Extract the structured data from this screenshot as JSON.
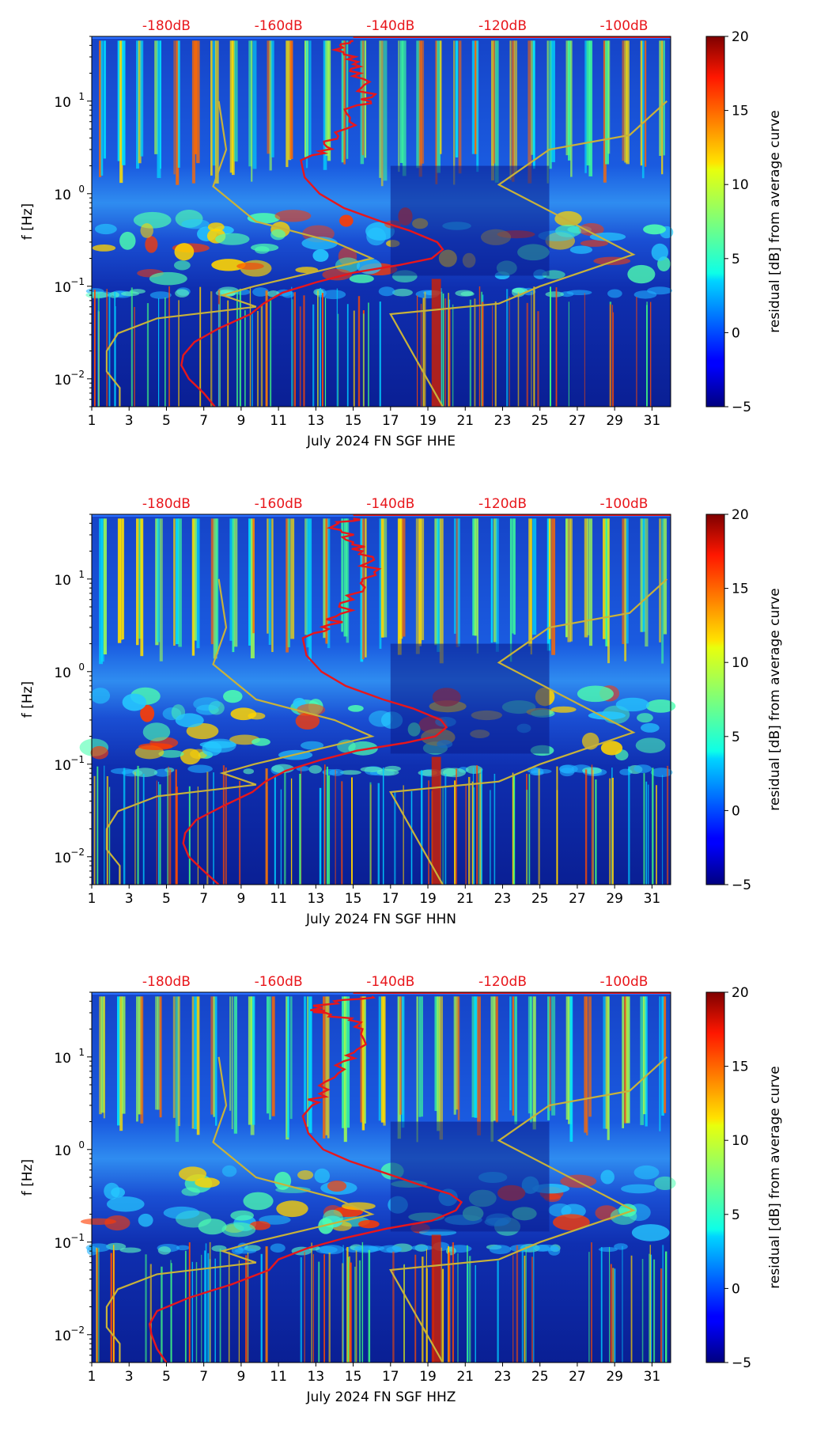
{
  "chart_data": [
    {
      "type": "heatmap",
      "channel": "HHE",
      "xlabel": "July 2024 FN SGF  HHE",
      "ylabel": "f [Hz]",
      "xlim": [
        1,
        32
      ],
      "ylim": [
        0.005,
        50
      ],
      "yscale": "log",
      "x_ticks": [
        "1",
        "3",
        "5",
        "7",
        "9",
        "11",
        "13",
        "15",
        "17",
        "19",
        "21",
        "23",
        "25",
        "27",
        "29",
        "31"
      ],
      "y_ticks": [
        {
          "value": 0.01,
          "base": "10",
          "exp": "−2"
        },
        {
          "value": 0.1,
          "base": "10",
          "exp": "−1"
        },
        {
          "value": 1,
          "base": "10",
          "exp": "0"
        },
        {
          "value": 10,
          "base": "10",
          "exp": "1"
        }
      ],
      "top_axis_labels": [
        "-180dB",
        "-160dB",
        "-140dB",
        "-120dB",
        "-100dB"
      ],
      "colorbar": {
        "label": "residual [dB] from average curve",
        "range": [
          -5,
          20
        ],
        "ticks": [
          "20",
          "15",
          "10",
          "5",
          "0",
          "−5"
        ]
      },
      "average_curve_red": [
        [
          7.6,
          0.005
        ],
        [
          7,
          0.007
        ],
        [
          6.2,
          0.01
        ],
        [
          5.8,
          0.014
        ],
        [
          5.9,
          0.018
        ],
        [
          6.5,
          0.025
        ],
        [
          7.8,
          0.035
        ],
        [
          9.5,
          0.05
        ],
        [
          10.2,
          0.065
        ],
        [
          11.2,
          0.085
        ],
        [
          13,
          0.11
        ],
        [
          15,
          0.14
        ],
        [
          17.5,
          0.17
        ],
        [
          19.2,
          0.2
        ],
        [
          19.8,
          0.25
        ],
        [
          19.5,
          0.3
        ],
        [
          18,
          0.4
        ],
        [
          16.5,
          0.5
        ],
        [
          14.5,
          0.7
        ],
        [
          13.2,
          1.0
        ],
        [
          12.4,
          1.5
        ],
        [
          12.2,
          2.3
        ],
        [
          12.8,
          2.6
        ],
        [
          13.6,
          3.2
        ],
        [
          14.2,
          4.2
        ],
        [
          14.8,
          6
        ],
        [
          15.2,
          9
        ],
        [
          16,
          11
        ],
        [
          15.6,
          15
        ],
        [
          15.4,
          20
        ],
        [
          15,
          25
        ],
        [
          14.5,
          32
        ],
        [
          14.3,
          40
        ],
        [
          15,
          45
        ]
      ],
      "reference_curve_gold": [
        [
          2.5,
          0.005
        ],
        [
          2.5,
          0.008
        ],
        [
          1.8,
          0.012
        ],
        [
          1.8,
          0.02
        ],
        [
          2.4,
          0.031
        ],
        [
          4.5,
          0.045
        ],
        [
          8.2,
          0.055
        ],
        [
          9.8,
          0.06
        ],
        [
          8,
          0.08
        ],
        [
          9.7,
          0.1
        ],
        [
          16,
          0.2
        ],
        [
          14,
          0.3
        ],
        [
          9.8,
          0.5
        ],
        [
          7.5,
          1.2
        ],
        [
          8.2,
          3
        ],
        [
          7.8,
          10
        ],
        [
          19.8,
          0.005
        ],
        [
          17,
          0.05
        ],
        [
          22.8,
          0.065
        ],
        [
          25,
          0.1
        ],
        [
          30,
          0.22
        ],
        [
          22.8,
          1.25
        ],
        [
          25.5,
          3
        ],
        [
          29.8,
          4.3
        ],
        [
          31.8,
          10
        ]
      ]
    },
    {
      "type": "heatmap",
      "channel": "HHN",
      "xlabel": "July 2024 FN SGF  HHN",
      "ylabel": "f [Hz]",
      "xlim": [
        1,
        32
      ],
      "ylim": [
        0.005,
        50
      ],
      "yscale": "log",
      "x_ticks": [
        "1",
        "3",
        "5",
        "7",
        "9",
        "11",
        "13",
        "15",
        "17",
        "19",
        "21",
        "23",
        "25",
        "27",
        "29",
        "31"
      ],
      "y_ticks": [
        {
          "value": 0.01,
          "base": "10",
          "exp": "−2"
        },
        {
          "value": 0.1,
          "base": "10",
          "exp": "−1"
        },
        {
          "value": 1,
          "base": "10",
          "exp": "0"
        },
        {
          "value": 10,
          "base": "10",
          "exp": "1"
        }
      ],
      "top_axis_labels": [
        "-180dB",
        "-160dB",
        "-140dB",
        "-120dB",
        "-100dB"
      ],
      "colorbar": {
        "label": "residual [dB] from average curve",
        "range": [
          -5,
          20
        ],
        "ticks": [
          "20",
          "15",
          "10",
          "5",
          "0",
          "−5"
        ]
      },
      "average_curve_red": [
        [
          7.8,
          0.005
        ],
        [
          7,
          0.007
        ],
        [
          6.2,
          0.01
        ],
        [
          5.9,
          0.014
        ],
        [
          6,
          0.018
        ],
        [
          6.6,
          0.025
        ],
        [
          8,
          0.035
        ],
        [
          9.6,
          0.05
        ],
        [
          10.3,
          0.065
        ],
        [
          11.4,
          0.085
        ],
        [
          13.2,
          0.11
        ],
        [
          15.2,
          0.14
        ],
        [
          17.8,
          0.17
        ],
        [
          19.4,
          0.2
        ],
        [
          20,
          0.25
        ],
        [
          19.7,
          0.3
        ],
        [
          18.2,
          0.4
        ],
        [
          16.6,
          0.5
        ],
        [
          14.6,
          0.7
        ],
        [
          13.3,
          1.0
        ],
        [
          12.5,
          1.5
        ],
        [
          12.3,
          2.3
        ],
        [
          12.9,
          2.6
        ],
        [
          13.7,
          3.2
        ],
        [
          14.3,
          4.2
        ],
        [
          15,
          6
        ],
        [
          15.4,
          9
        ],
        [
          16.2,
          11
        ],
        [
          15.8,
          15
        ],
        [
          15.5,
          20
        ],
        [
          15,
          25
        ],
        [
          14.4,
          32
        ],
        [
          14.2,
          40
        ],
        [
          15,
          45
        ]
      ],
      "reference_curve_gold": [
        [
          2.5,
          0.005
        ],
        [
          2.5,
          0.008
        ],
        [
          1.8,
          0.012
        ],
        [
          1.8,
          0.02
        ],
        [
          2.4,
          0.031
        ],
        [
          4.5,
          0.045
        ],
        [
          8.2,
          0.055
        ],
        [
          9.8,
          0.06
        ],
        [
          8,
          0.08
        ],
        [
          9.7,
          0.1
        ],
        [
          16,
          0.2
        ],
        [
          14,
          0.3
        ],
        [
          9.8,
          0.5
        ],
        [
          7.5,
          1.2
        ],
        [
          8.2,
          3
        ],
        [
          7.8,
          10
        ],
        [
          19.8,
          0.005
        ],
        [
          17,
          0.05
        ],
        [
          22.8,
          0.065
        ],
        [
          25,
          0.1
        ],
        [
          30,
          0.22
        ],
        [
          22.8,
          1.25
        ],
        [
          25.5,
          3
        ],
        [
          29.8,
          4.3
        ],
        [
          31.8,
          10
        ]
      ]
    },
    {
      "type": "heatmap",
      "channel": "HHZ",
      "xlabel": "July 2024 FN SGF  HHZ",
      "ylabel": "f [Hz]",
      "xlim": [
        1,
        32
      ],
      "ylim": [
        0.005,
        50
      ],
      "yscale": "log",
      "x_ticks": [
        "1",
        "3",
        "5",
        "7",
        "9",
        "11",
        "13",
        "15",
        "17",
        "19",
        "21",
        "23",
        "25",
        "27",
        "29",
        "31"
      ],
      "y_ticks": [
        {
          "value": 0.01,
          "base": "10",
          "exp": "−2"
        },
        {
          "value": 0.1,
          "base": "10",
          "exp": "−1"
        },
        {
          "value": 1,
          "base": "10",
          "exp": "0"
        },
        {
          "value": 10,
          "base": "10",
          "exp": "1"
        }
      ],
      "top_axis_labels": [
        "-180dB",
        "-160dB",
        "-140dB",
        "-120dB",
        "-100dB"
      ],
      "colorbar": {
        "label": "residual [dB] from average curve",
        "range": [
          -5,
          20
        ],
        "ticks": [
          "20",
          "15",
          "10",
          "5",
          "0",
          "−5"
        ]
      },
      "average_curve_red": [
        [
          5,
          0.005
        ],
        [
          4.5,
          0.007
        ],
        [
          4.2,
          0.01
        ],
        [
          4.1,
          0.013
        ],
        [
          4.5,
          0.018
        ],
        [
          6.2,
          0.025
        ],
        [
          8.5,
          0.035
        ],
        [
          10.5,
          0.05
        ],
        [
          11,
          0.065
        ],
        [
          12.5,
          0.085
        ],
        [
          14.5,
          0.11
        ],
        [
          16.8,
          0.14
        ],
        [
          19.2,
          0.17
        ],
        [
          20.5,
          0.22
        ],
        [
          20.8,
          0.27
        ],
        [
          20.2,
          0.33
        ],
        [
          18.5,
          0.42
        ],
        [
          16.8,
          0.55
        ],
        [
          14.8,
          0.75
        ],
        [
          13.4,
          1.0
        ],
        [
          12.6,
          1.5
        ],
        [
          12.3,
          2.3
        ],
        [
          12.8,
          3
        ],
        [
          13.2,
          4
        ],
        [
          14,
          6
        ],
        [
          14.5,
          9
        ],
        [
          15.2,
          12
        ],
        [
          15.5,
          20
        ],
        [
          14.8,
          25
        ],
        [
          13.5,
          30
        ],
        [
          12.7,
          32
        ],
        [
          14,
          40
        ],
        [
          16,
          45
        ]
      ],
      "reference_curve_gold": [
        [
          2.5,
          0.005
        ],
        [
          2.5,
          0.008
        ],
        [
          1.8,
          0.012
        ],
        [
          1.8,
          0.02
        ],
        [
          2.4,
          0.031
        ],
        [
          4.5,
          0.045
        ],
        [
          8.2,
          0.055
        ],
        [
          9.8,
          0.06
        ],
        [
          8,
          0.08
        ],
        [
          9.7,
          0.1
        ],
        [
          16,
          0.2
        ],
        [
          14,
          0.3
        ],
        [
          9.8,
          0.5
        ],
        [
          7.5,
          1.2
        ],
        [
          8.2,
          3
        ],
        [
          7.8,
          10
        ],
        [
          19.8,
          0.005
        ],
        [
          17,
          0.05
        ],
        [
          22.8,
          0.065
        ],
        [
          25,
          0.1
        ],
        [
          30,
          0.22
        ],
        [
          22.8,
          1.25
        ],
        [
          25.5,
          3
        ],
        [
          29.8,
          4.3
        ],
        [
          31.8,
          10
        ]
      ]
    }
  ],
  "colors": {
    "average_curve": "#e8161b",
    "reference_curve": "#c8b23a",
    "top_axis_text": "#e8161b"
  }
}
